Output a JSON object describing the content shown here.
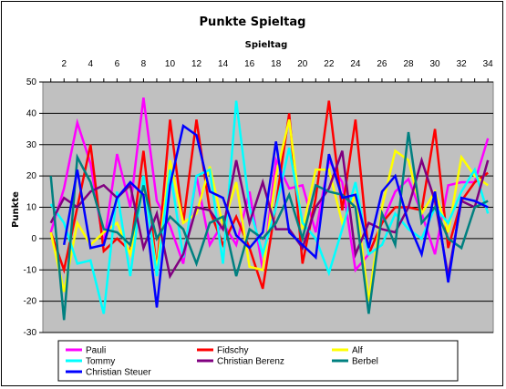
{
  "chart_data": {
    "type": "line",
    "title": "Punkte Spieltag",
    "xlabel": "Spieltag",
    "ylabel": "Punkte",
    "x": [
      1,
      2,
      3,
      4,
      5,
      6,
      7,
      8,
      9,
      10,
      11,
      12,
      13,
      14,
      15,
      16,
      17,
      18,
      19,
      20,
      21,
      22,
      23,
      24,
      25,
      26,
      27,
      28,
      29,
      30,
      31,
      32,
      33,
      34
    ],
    "x_tick_labels": [
      "2",
      "4",
      "6",
      "8",
      "10",
      "12",
      "14",
      "16",
      "18",
      "20",
      "22",
      "24",
      "26",
      "28",
      "30",
      "32",
      "34"
    ],
    "x_tick_values": [
      2,
      4,
      6,
      8,
      10,
      12,
      14,
      16,
      18,
      20,
      22,
      24,
      26,
      28,
      30,
      32,
      34
    ],
    "ylim": [
      -30,
      50
    ],
    "y_ticks": [
      -30,
      -20,
      -10,
      0,
      10,
      20,
      30,
      40,
      50
    ],
    "grid": "horizontal",
    "background": "#c0c0c0",
    "legend_position": "bottom",
    "series": [
      {
        "name": "Pauli",
        "color": "#ff00ff",
        "values": [
          2,
          16,
          37,
          24,
          -2,
          27,
          10,
          45,
          12,
          4,
          -8,
          20,
          -2,
          5,
          -2,
          15,
          -10,
          25,
          16,
          17,
          2,
          25,
          18,
          -10,
          -5,
          5,
          15,
          19,
          8,
          -5,
          17,
          18,
          18,
          32
        ]
      },
      {
        "name": "Fidschy",
        "color": "#ff0000",
        "values": [
          2,
          -10,
          10,
          30,
          -4,
          0,
          -4,
          28,
          -10,
          38,
          5,
          38,
          9,
          -2,
          7,
          -3,
          -16,
          11,
          40,
          -8,
          13,
          44,
          9,
          38,
          -5,
          5,
          10,
          10,
          9,
          35,
          -3,
          12,
          18,
          21
        ]
      },
      {
        "name": "Alf",
        "color": "#ffff00",
        "values": [
          2,
          -17,
          5,
          -2,
          2,
          5,
          -5,
          18,
          -10,
          25,
          5,
          8,
          23,
          4,
          18,
          -9,
          -10,
          20,
          38,
          3,
          22,
          22,
          5,
          14,
          -20,
          10,
          28,
          25,
          8,
          15,
          2,
          26,
          20,
          17
        ]
      },
      {
        "name": "Tommy",
        "color": "#00ffff",
        "values": [
          11,
          5,
          -8,
          -7,
          -24,
          15,
          -12,
          20,
          -12,
          22,
          -6,
          20,
          22,
          -8,
          44,
          10,
          -5,
          10,
          29,
          5,
          0,
          -11,
          3,
          18,
          -5,
          -2,
          8,
          3,
          0,
          10,
          5,
          15,
          22,
          8
        ]
      },
      {
        "name": "Christian Berenz",
        "color": "#800080",
        "values": [
          5,
          13,
          10,
          15,
          17,
          13,
          17,
          -3,
          8,
          -12,
          -5,
          10,
          9,
          3,
          25,
          5,
          18,
          3,
          3,
          -3,
          10,
          16,
          28,
          -5,
          5,
          3,
          2,
          10,
          25,
          12,
          -12,
          12,
          10,
          25
        ]
      },
      {
        "name": "Berbel",
        "color": "#008080",
        "values": [
          20,
          -26,
          26,
          18,
          3,
          2,
          -2,
          17,
          0,
          7,
          3,
          -8,
          5,
          7,
          -12,
          3,
          0,
          5,
          14,
          0,
          17,
          15,
          14,
          10,
          -24,
          8,
          -2,
          34,
          5,
          10,
          0,
          -3,
          10,
          12
        ]
      },
      {
        "name": "Christian Steuer",
        "color": "#0000ff",
        "values": [
          null,
          -2,
          22,
          -3,
          -2,
          13,
          18,
          14,
          -22,
          17,
          36,
          33,
          15,
          13,
          1,
          -3,
          2,
          31,
          2,
          -2,
          -6,
          27,
          13,
          14,
          -3,
          15,
          20,
          5,
          -5,
          15,
          -14,
          13,
          12,
          10
        ]
      }
    ]
  }
}
